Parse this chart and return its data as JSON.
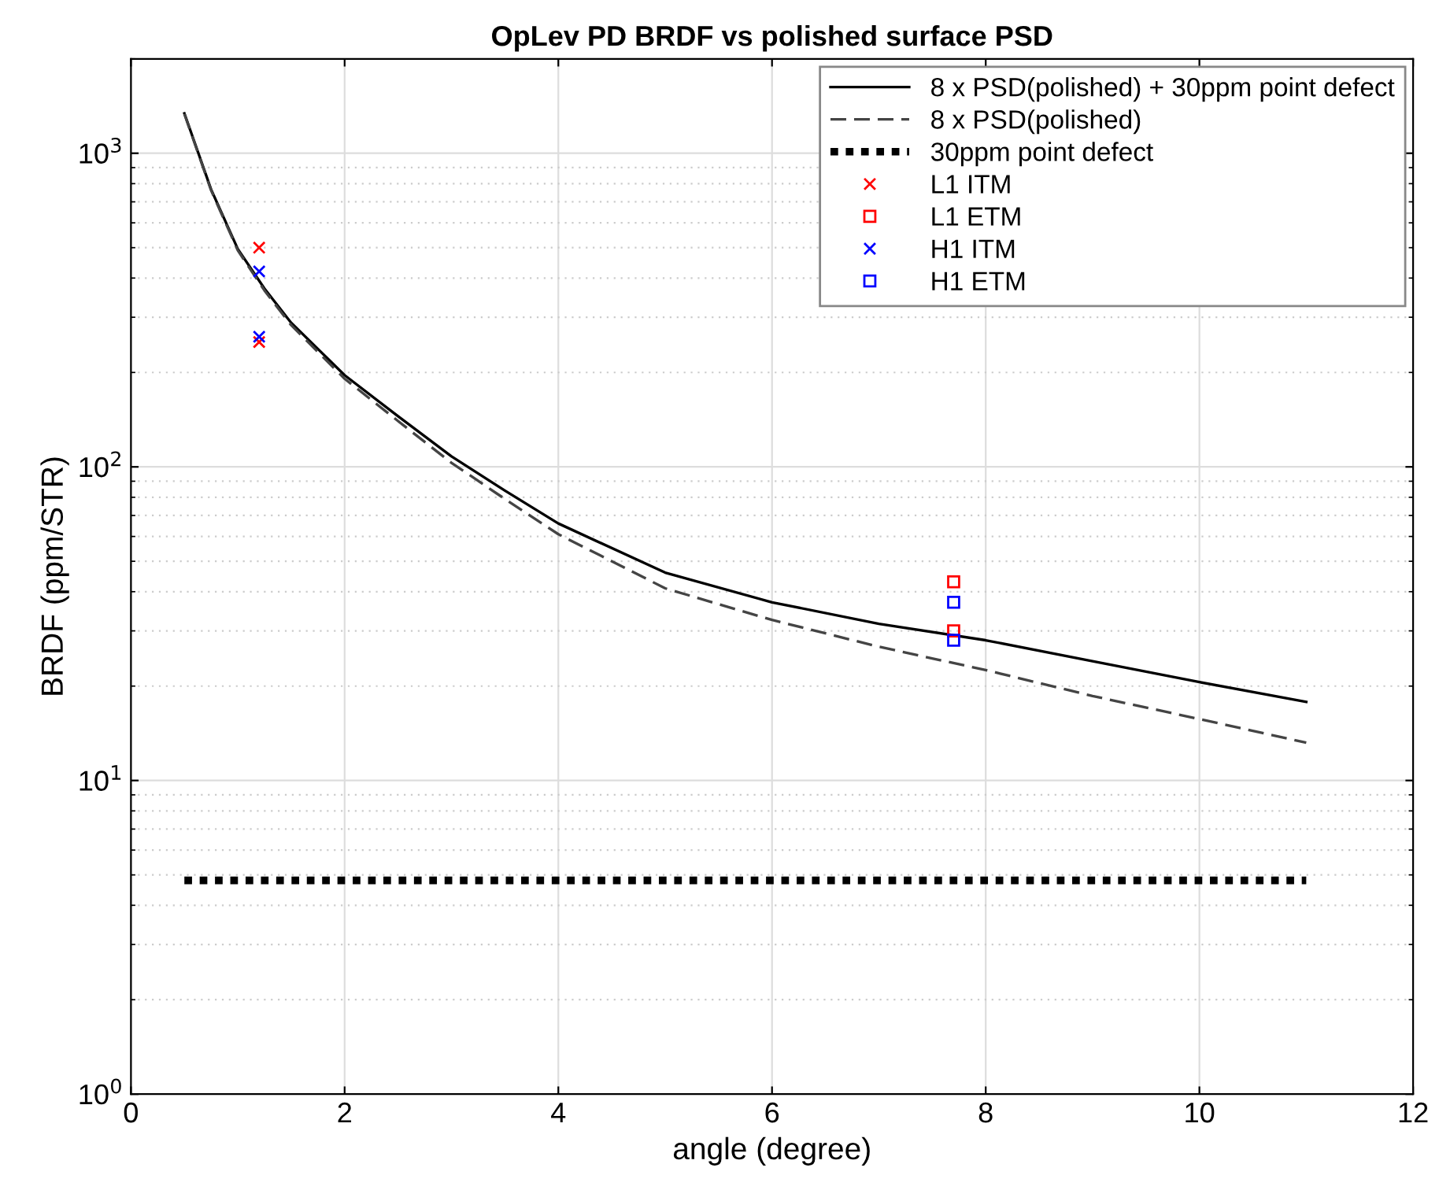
{
  "chart_data": {
    "type": "line",
    "title": "OpLev PD BRDF vs polished surface PSD",
    "xlabel": "angle (degree)",
    "ylabel": "BRDF (ppm/STR)",
    "log": "y",
    "grid": true,
    "legend": "top right",
    "xlim": [
      0,
      12
    ],
    "xticks": [
      0,
      2,
      4,
      6,
      8,
      10,
      12
    ],
    "ylim": [
      1,
      2000
    ],
    "yticks": [
      {
        "value": 1,
        "label": "10$^{0}$"
      },
      {
        "value": 10,
        "label": "10$^{1}$"
      },
      {
        "value": 100,
        "label": "10$^{2}$"
      },
      {
        "value": 1000,
        "label": "10$^{3}$"
      }
    ],
    "series": [
      {
        "name": "8 x PSD(polished) + 30ppm point defect",
        "line_style": "solid",
        "color": "#000000",
        "x": [
          0.5,
          0.75,
          1,
          1.25,
          1.5,
          2,
          2.5,
          3,
          3.5,
          4,
          5,
          6,
          7,
          8,
          9,
          10,
          11
        ],
        "values": [
          1340,
          767,
          495,
          370,
          288,
          196,
          145,
          108,
          84,
          66,
          46,
          37,
          31.6,
          28,
          24,
          20.6,
          17.8
        ]
      },
      {
        "name": "8 x PSD(polished)",
        "line_style": "dashed",
        "color": "#444444",
        "x": [
          0.5,
          0.75,
          1,
          1.25,
          1.5,
          2,
          2.5,
          3,
          3.5,
          4,
          5,
          6,
          7,
          8,
          9,
          10,
          11
        ],
        "values": [
          1335,
          762,
          490,
          365,
          283,
          191,
          140,
          103,
          79,
          61,
          41,
          32.5,
          26.7,
          22.5,
          18.6,
          15.7,
          13.2
        ]
      },
      {
        "name": "30ppm point defect",
        "line_style": "dotted",
        "color": "#000000",
        "x": [
          0.5,
          11
        ],
        "values": [
          4.8,
          4.8
        ]
      },
      {
        "name": "L1 ITM",
        "type": "scatter",
        "marker": "cross",
        "color": "#ff0000",
        "x": [
          1.2,
          1.2
        ],
        "values": [
          500,
          250
        ]
      },
      {
        "name": "L1 ETM",
        "type": "scatter",
        "marker": "square",
        "color": "#ff0000",
        "x": [
          7.7,
          7.7
        ],
        "values": [
          43,
          30
        ]
      },
      {
        "name": "H1 ITM",
        "type": "scatter",
        "marker": "cross",
        "color": "#0000ff",
        "x": [
          1.2,
          1.2
        ],
        "values": [
          420,
          260
        ]
      },
      {
        "name": "H1 ETM",
        "type": "scatter",
        "marker": "square",
        "color": "#0000ff",
        "x": [
          7.7,
          7.7
        ],
        "values": [
          37,
          28
        ]
      }
    ]
  }
}
